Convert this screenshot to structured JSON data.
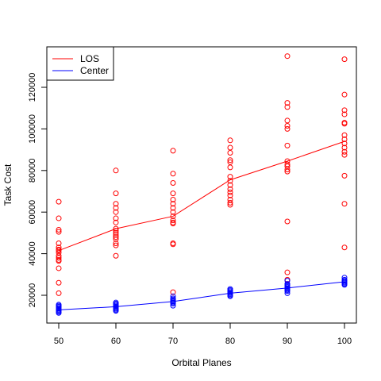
{
  "chart_data": {
    "type": "scatter",
    "title": "",
    "xlabel": "Orbital Planes",
    "ylabel": "Task Cost",
    "x_ticks": [
      50,
      60,
      70,
      80,
      90,
      100
    ],
    "y_ticks": [
      20000,
      40000,
      60000,
      80000,
      100000,
      120000
    ],
    "xlim": [
      48,
      102
    ],
    "ylim": [
      10000,
      140000
    ],
    "legend_position": "top-left",
    "series": [
      {
        "name": "LOS",
        "color": "#ff0000",
        "points": [
          [
            50,
            65000
          ],
          [
            50,
            57000
          ],
          [
            50,
            51500
          ],
          [
            50,
            50500
          ],
          [
            50,
            45000
          ],
          [
            50,
            43000
          ],
          [
            50,
            42000
          ],
          [
            50,
            41500
          ],
          [
            50,
            40500
          ],
          [
            50,
            39000
          ],
          [
            50,
            38000
          ],
          [
            50,
            37000
          ],
          [
            50,
            36500
          ],
          [
            50,
            33000
          ],
          [
            50,
            26000
          ],
          [
            50,
            21000
          ],
          [
            60,
            80000
          ],
          [
            60,
            69000
          ],
          [
            60,
            64000
          ],
          [
            60,
            62000
          ],
          [
            60,
            60000
          ],
          [
            60,
            57000
          ],
          [
            60,
            55000
          ],
          [
            60,
            52000
          ],
          [
            60,
            51000
          ],
          [
            60,
            50000
          ],
          [
            60,
            49000
          ],
          [
            60,
            48000
          ],
          [
            60,
            47000
          ],
          [
            60,
            45000
          ],
          [
            60,
            44000
          ],
          [
            60,
            39000
          ],
          [
            70,
            89500
          ],
          [
            70,
            78500
          ],
          [
            70,
            74000
          ],
          [
            70,
            69000
          ],
          [
            70,
            66000
          ],
          [
            70,
            64000
          ],
          [
            70,
            62000
          ],
          [
            70,
            60000
          ],
          [
            70,
            58000
          ],
          [
            70,
            56000
          ],
          [
            70,
            55000
          ],
          [
            70,
            54500
          ],
          [
            70,
            45000
          ],
          [
            70,
            44500
          ],
          [
            70,
            21500
          ],
          [
            80,
            94500
          ],
          [
            80,
            91000
          ],
          [
            80,
            88500
          ],
          [
            80,
            85000
          ],
          [
            80,
            84000
          ],
          [
            80,
            81500
          ],
          [
            80,
            77000
          ],
          [
            80,
            75000
          ],
          [
            80,
            73000
          ],
          [
            80,
            71000
          ],
          [
            80,
            69500
          ],
          [
            80,
            68000
          ],
          [
            80,
            66000
          ],
          [
            80,
            64500
          ],
          [
            80,
            63500
          ],
          [
            90,
            135000
          ],
          [
            90,
            112500
          ],
          [
            90,
            110500
          ],
          [
            90,
            104000
          ],
          [
            90,
            101500
          ],
          [
            90,
            100000
          ],
          [
            90,
            92000
          ],
          [
            90,
            84500
          ],
          [
            90,
            83000
          ],
          [
            90,
            82000
          ],
          [
            90,
            80500
          ],
          [
            90,
            79500
          ],
          [
            90,
            55500
          ],
          [
            90,
            31000
          ],
          [
            90,
            27500
          ],
          [
            100,
            133500
          ],
          [
            100,
            116500
          ],
          [
            100,
            109000
          ],
          [
            100,
            107000
          ],
          [
            100,
            103000
          ],
          [
            100,
            102500
          ],
          [
            100,
            97000
          ],
          [
            100,
            95000
          ],
          [
            100,
            93000
          ],
          [
            100,
            91000
          ],
          [
            100,
            89000
          ],
          [
            100,
            87500
          ],
          [
            100,
            77500
          ],
          [
            100,
            64000
          ],
          [
            100,
            43000
          ]
        ],
        "mean_line": {
          "x": [
            50,
            60,
            70,
            80,
            90,
            100
          ],
          "y": [
            41500,
            52000,
            58000,
            75500,
            84500,
            94000
          ]
        }
      },
      {
        "name": "Center",
        "color": "#0000ff",
        "points": [
          [
            50,
            15500
          ],
          [
            50,
            15000
          ],
          [
            50,
            14500
          ],
          [
            50,
            14000
          ],
          [
            50,
            13500
          ],
          [
            50,
            13000
          ],
          [
            50,
            12500
          ],
          [
            50,
            12000
          ],
          [
            50,
            11500
          ],
          [
            60,
            16500
          ],
          [
            60,
            16000
          ],
          [
            60,
            15500
          ],
          [
            60,
            15000
          ],
          [
            60,
            14500
          ],
          [
            60,
            14000
          ],
          [
            60,
            13500
          ],
          [
            60,
            13000
          ],
          [
            60,
            12500
          ],
          [
            70,
            19500
          ],
          [
            70,
            18500
          ],
          [
            70,
            18000
          ],
          [
            70,
            17500
          ],
          [
            70,
            17000
          ],
          [
            70,
            16500
          ],
          [
            70,
            16000
          ],
          [
            70,
            15000
          ],
          [
            80,
            23000
          ],
          [
            80,
            22500
          ],
          [
            80,
            22000
          ],
          [
            80,
            21500
          ],
          [
            80,
            21000
          ],
          [
            80,
            20500
          ],
          [
            80,
            20000
          ],
          [
            80,
            19500
          ],
          [
            90,
            27000
          ],
          [
            90,
            25500
          ],
          [
            90,
            25000
          ],
          [
            90,
            24500
          ],
          [
            90,
            24000
          ],
          [
            90,
            23500
          ],
          [
            90,
            23000
          ],
          [
            90,
            22500
          ],
          [
            90,
            22000
          ],
          [
            90,
            21000
          ],
          [
            100,
            28500
          ],
          [
            100,
            27500
          ],
          [
            100,
            27000
          ],
          [
            100,
            26500
          ],
          [
            100,
            26000
          ],
          [
            100,
            25500
          ],
          [
            100,
            25000
          ]
        ],
        "mean_line": {
          "x": [
            50,
            60,
            70,
            80,
            90,
            100
          ],
          "y": [
            13000,
            14500,
            17000,
            21000,
            23500,
            26500
          ]
        }
      }
    ]
  }
}
